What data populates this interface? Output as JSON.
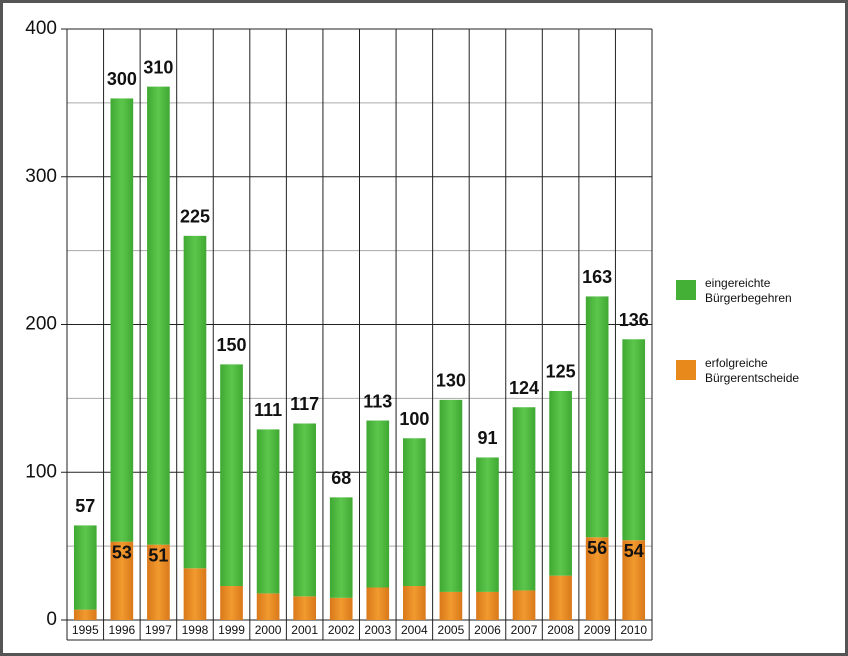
{
  "chart_data": {
    "type": "stacked-bar",
    "categories": [
      "1995",
      "1996",
      "1997",
      "1998",
      "1999",
      "2000",
      "2001",
      "2002",
      "2003",
      "2004",
      "2005",
      "2006",
      "2007",
      "2008",
      "2009",
      "2010"
    ],
    "series": [
      {
        "name": "erfolgreiche Bürgerentscheide",
        "color": "#e8891c",
        "values": [
          7,
          53,
          51,
          35,
          23,
          18,
          16,
          15,
          22,
          23,
          19,
          19,
          20,
          30,
          56,
          54
        ]
      },
      {
        "name": "eingereichte Bürgerbegehren",
        "color": "#44b035",
        "values": [
          57,
          300,
          310,
          225,
          150,
          111,
          117,
          68,
          113,
          100,
          130,
          91,
          124,
          125,
          163,
          136
        ]
      }
    ],
    "ylim": [
      0,
      400
    ],
    "yticks": [
      0,
      100,
      200,
      300,
      400
    ],
    "minor_yticks": [
      50,
      150,
      250,
      350
    ],
    "grid": true,
    "legend": "right"
  }
}
